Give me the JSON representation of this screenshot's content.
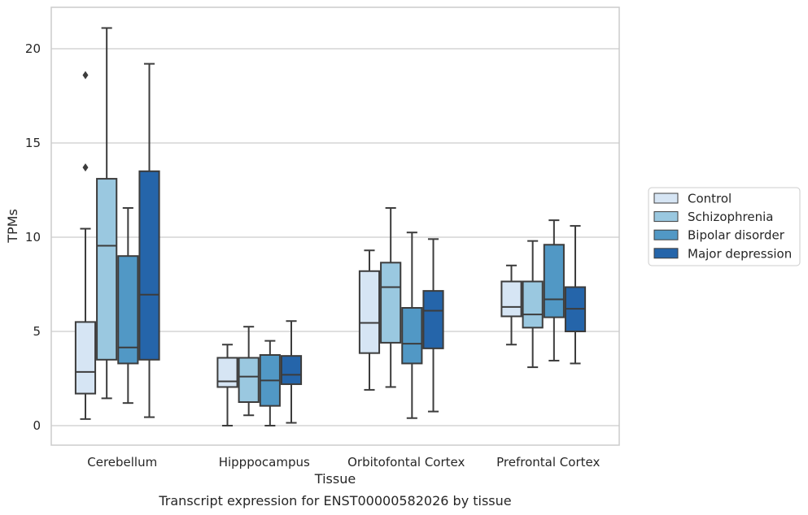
{
  "chart_data": {
    "type": "box",
    "title": "",
    "caption": "Transcript expression for ENST00000582026 by tissue",
    "xlabel": "Tissue",
    "ylabel": "TPMs",
    "ylim": [
      -1,
      22.2
    ],
    "yticks": [
      0,
      5,
      10,
      15,
      20
    ],
    "grid": "horizontal",
    "legend_position": "right",
    "categories": [
      "Cerebellum",
      "Hipppocampus",
      "Orbitofontal Cortex",
      "Prefrontal Cortex"
    ],
    "series": [
      {
        "name": "Control",
        "color": "#d6e5f4",
        "boxes": [
          {
            "whislo": 0.35,
            "q1": 1.7,
            "med": 2.85,
            "q3": 5.5,
            "whishi": 10.45,
            "fliers": [
              13.7,
              18.6
            ]
          },
          {
            "whislo": 0.0,
            "q1": 2.05,
            "med": 2.35,
            "q3": 3.6,
            "whishi": 4.3,
            "fliers": []
          },
          {
            "whislo": 1.9,
            "q1": 3.85,
            "med": 5.45,
            "q3": 8.2,
            "whishi": 9.3,
            "fliers": []
          },
          {
            "whislo": 4.3,
            "q1": 5.8,
            "med": 6.3,
            "q3": 7.65,
            "whishi": 8.5,
            "fliers": []
          }
        ]
      },
      {
        "name": "Schizophrenia",
        "color": "#9ac8e0",
        "boxes": [
          {
            "whislo": 1.45,
            "q1": 3.5,
            "med": 9.55,
            "q3": 13.1,
            "whishi": 21.1,
            "fliers": []
          },
          {
            "whislo": 0.55,
            "q1": 1.25,
            "med": 2.6,
            "q3": 3.6,
            "whishi": 5.25,
            "fliers": []
          },
          {
            "whislo": 2.05,
            "q1": 4.4,
            "med": 7.35,
            "q3": 8.65,
            "whishi": 11.55,
            "fliers": []
          },
          {
            "whislo": 3.1,
            "q1": 5.2,
            "med": 5.9,
            "q3": 7.65,
            "whishi": 9.8,
            "fliers": []
          }
        ]
      },
      {
        "name": "Bipolar disorder",
        "color": "#5198c5",
        "boxes": [
          {
            "whislo": 1.2,
            "q1": 3.3,
            "med": 4.15,
            "q3": 9.0,
            "whishi": 11.55,
            "fliers": []
          },
          {
            "whislo": 0.0,
            "q1": 1.05,
            "med": 2.4,
            "q3": 3.75,
            "whishi": 4.5,
            "fliers": []
          },
          {
            "whislo": 0.4,
            "q1": 3.3,
            "med": 4.35,
            "q3": 6.25,
            "whishi": 10.25,
            "fliers": []
          },
          {
            "whislo": 3.45,
            "q1": 5.75,
            "med": 6.7,
            "q3": 9.6,
            "whishi": 10.9,
            "fliers": []
          }
        ]
      },
      {
        "name": "Major depression",
        "color": "#2565aa",
        "boxes": [
          {
            "whislo": 0.45,
            "q1": 3.5,
            "med": 6.95,
            "q3": 13.5,
            "whishi": 19.2,
            "fliers": []
          },
          {
            "whislo": 0.15,
            "q1": 2.2,
            "med": 2.7,
            "q3": 3.7,
            "whishi": 5.55,
            "fliers": []
          },
          {
            "whislo": 0.75,
            "q1": 4.1,
            "med": 6.1,
            "q3": 7.15,
            "whishi": 9.9,
            "fliers": []
          },
          {
            "whislo": 3.3,
            "q1": 5.0,
            "med": 6.2,
            "q3": 7.35,
            "whishi": 10.6,
            "fliers": []
          }
        ]
      }
    ]
  }
}
